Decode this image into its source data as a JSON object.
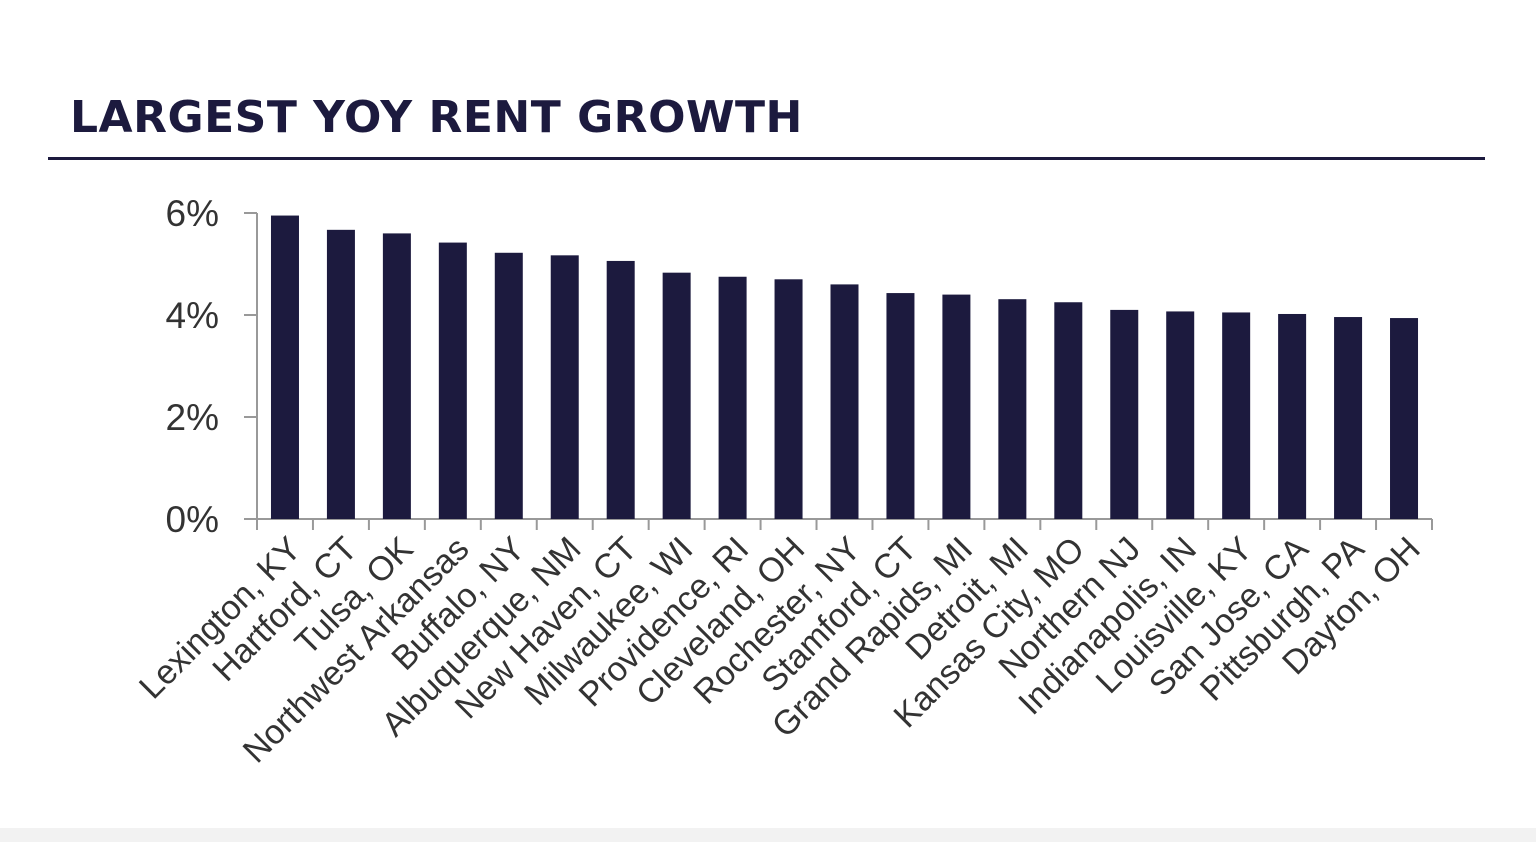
{
  "title": "LARGEST YOY RENT GROWTH",
  "colors": {
    "bar": "#1c1a3e",
    "title": "#1c1a3e",
    "axis": "#999999",
    "tick_label": "#333333"
  },
  "chart_data": {
    "type": "bar",
    "categories": [
      "Lexington, KY",
      "Hartford, CT",
      "Tulsa, OK",
      "Northwest Arkansas",
      "Buffalo, NY",
      "Albuquerque, NM",
      "New Haven, CT",
      "Milwaukee, WI",
      "Providence, RI",
      "Cleveland, OH",
      "Rochester, NY",
      "Stamford, CT",
      "Grand Rapids, MI",
      "Detroit, MI",
      "Kansas City, MO",
      "Northern NJ",
      "Indianapolis, IN",
      "Louisville, KY",
      "San Jose, CA",
      "Pittsburgh, PA",
      "Dayton, OH"
    ],
    "values": [
      5.95,
      5.67,
      5.6,
      5.42,
      5.22,
      5.17,
      5.06,
      4.83,
      4.75,
      4.7,
      4.6,
      4.43,
      4.4,
      4.31,
      4.25,
      4.1,
      4.07,
      4.05,
      4.02,
      3.96,
      3.94
    ],
    "y_ticks": [
      "0%",
      "2%",
      "4%",
      "6%"
    ],
    "y_tick_values": [
      0,
      2,
      4,
      6
    ],
    "ylim": [
      0,
      6
    ],
    "xlabel": "",
    "ylabel": "",
    "grid": false,
    "legend": "none"
  }
}
